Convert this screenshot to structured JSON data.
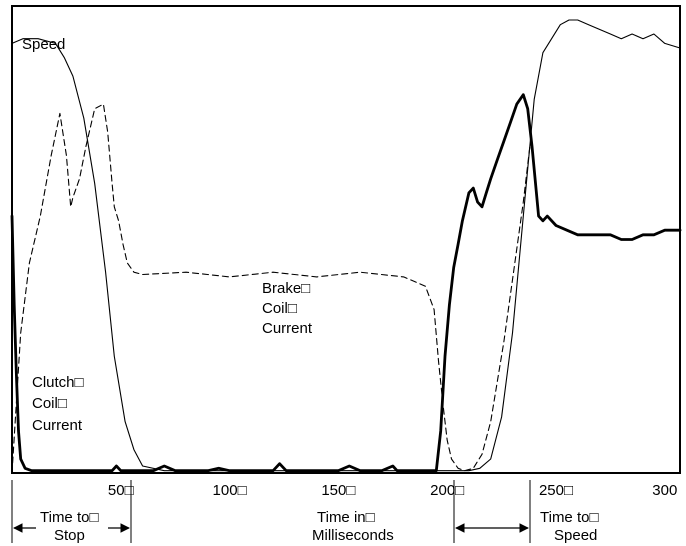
{
  "chart_data": {
    "type": "line",
    "x_ticks": [
      "50□",
      "100□",
      "150□",
      "200□",
      "250□",
      "300"
    ],
    "x_tick_values": [
      50,
      100,
      150,
      200,
      250,
      300
    ],
    "xlim": [
      0,
      307
    ],
    "ylim": [
      0,
      100
    ],
    "grid": false,
    "labels": {
      "speed": "Speed",
      "brake": [
        "Brake□",
        "Coil□",
        "Current"
      ],
      "clutch": [
        "Clutch□",
        "Coil□",
        "Current"
      ]
    },
    "annotations": {
      "time_to_stop": [
        "Time to□",
        "Stop"
      ],
      "time_in_ms": [
        "Time in□",
        "Milliseconds"
      ],
      "time_to_speed": [
        "Time to□",
        "Speed"
      ]
    },
    "series": [
      {
        "id": "speed",
        "style": "thin-solid",
        "color": "#000000",
        "x": [
          0,
          5,
          12,
          20,
          24,
          28,
          33,
          38,
          43,
          47,
          52,
          56,
          60,
          70,
          80,
          100,
          150,
          200,
          205,
          210,
          215,
          220,
          225,
          230,
          235,
          240,
          244,
          248,
          252,
          256,
          260,
          265,
          270,
          275,
          280,
          285,
          290,
          295,
          300,
          307
        ],
        "y": [
          92,
          93,
          93,
          92,
          89,
          85,
          76,
          62,
          43,
          25,
          11,
          5,
          1.5,
          0.5,
          0.5,
          0.5,
          0.5,
          0.5,
          0.5,
          0.5,
          1,
          3,
          12,
          30,
          55,
          80,
          90,
          93,
          96,
          97,
          97,
          96,
          95,
          94,
          93,
          94,
          93,
          94,
          92,
          91
        ]
      },
      {
        "id": "brake",
        "style": "dashed",
        "color": "#000000",
        "x": [
          0,
          4,
          8,
          13,
          18,
          22,
          25,
          27,
          28,
          31,
          34,
          38,
          42,
          44,
          46,
          47,
          49,
          51,
          53,
          56,
          60,
          80,
          100,
          120,
          140,
          160,
          180,
          190,
          194,
          196,
          198,
          200,
          202,
          205,
          208,
          212,
          216,
          220,
          226,
          232,
          235,
          237,
          238
        ],
        "y": [
          0,
          30,
          45,
          55,
          68,
          77,
          68,
          57,
          59,
          63,
          70,
          78,
          79,
          73,
          62,
          57,
          54,
          49,
          45,
          43,
          42.5,
          43,
          42,
          43,
          42,
          43,
          42,
          40,
          35,
          24,
          15,
          7,
          3,
          1,
          0.5,
          1,
          4,
          11,
          28,
          48,
          58,
          66,
          70
        ]
      },
      {
        "id": "clutch",
        "style": "bold-solid",
        "color": "#000000",
        "x": [
          0,
          1,
          2,
          3,
          4,
          6,
          9,
          14,
          20,
          30,
          40,
          46,
          48,
          50,
          55,
          65,
          70,
          75,
          80,
          90,
          95,
          100,
          110,
          120,
          123,
          126,
          130,
          140,
          150,
          155,
          160,
          165,
          170,
          175,
          177,
          180,
          185,
          190,
          195,
          197,
          199,
          201,
          203,
          205,
          207,
          210,
          212,
          214,
          216,
          218,
          220,
          223,
          226,
          229,
          232,
          235,
          237,
          239,
          241,
          242,
          244,
          246,
          250,
          255,
          260,
          265,
          270,
          275,
          280,
          285,
          290,
          295,
          300,
          307
        ],
        "y": [
          55,
          36,
          21,
          9,
          3,
          1,
          0.5,
          0.5,
          0.5,
          0.5,
          0.5,
          0.5,
          1.5,
          0.5,
          0.5,
          0.5,
          1.5,
          0.5,
          0.5,
          0.5,
          1,
          0.5,
          0.5,
          0.5,
          2,
          0.5,
          0.5,
          0.5,
          0.5,
          1.5,
          0.5,
          0.5,
          0.5,
          1.5,
          0.5,
          0.5,
          0.5,
          0.5,
          0.5,
          9,
          25,
          36,
          44,
          49,
          54,
          60,
          61,
          58,
          57,
          60,
          63,
          67,
          71,
          75,
          79,
          81,
          78,
          70,
          60,
          55,
          54,
          55,
          53,
          52,
          51,
          51,
          51,
          51,
          50,
          50,
          51,
          51,
          52,
          52
        ]
      }
    ]
  }
}
